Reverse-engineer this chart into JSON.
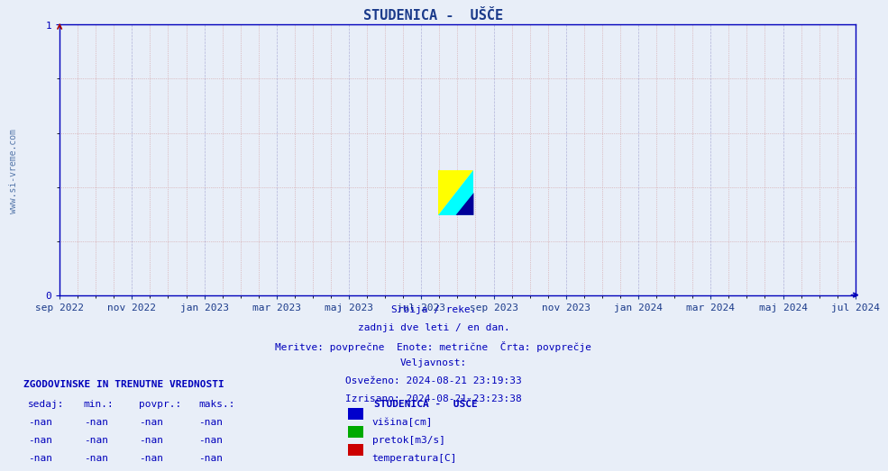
{
  "title": "STUDENICA -  UŠČE",
  "title_color": "#1a3a8a",
  "title_fontsize": 11,
  "background_color": "#e8eef8",
  "plot_bg_color": "#e8eef8",
  "axis_color": "#0000bb",
  "grid_color_major": "#9999cc",
  "grid_color_minor": "#cc8888",
  "ylim": [
    0,
    1
  ],
  "yticks": [
    0,
    1
  ],
  "xlabel_color": "#1a3a8a",
  "xticklabels": [
    "sep 2022",
    "nov 2022",
    "jan 2023",
    "mar 2023",
    "maj 2023",
    "jul 2023",
    "sep 2023",
    "nov 2023",
    "jan 2024",
    "mar 2024",
    "maj 2024",
    "jul 2024"
  ],
  "watermark": "www.si-vreme.com",
  "watermark_color": "#5577aa",
  "subtitle_lines": [
    "Srbija / reke.",
    "zadnji dve leti / en dan.",
    "Meritve: povprečne  Enote: metrične  Črta: povprečje",
    "Veljavnost:",
    "Osveženo: 2024-08-21 23:19:33",
    "Izrisano: 2024-08-21 23:23:38"
  ],
  "legend_title": "STUDENICA -  UŠČE",
  "legend_items": [
    {
      "label": "višina[cm]",
      "color": "#0000cc"
    },
    {
      "label": "pretok[m3/s]",
      "color": "#00aa00"
    },
    {
      "label": "temperatura[C]",
      "color": "#cc0000"
    }
  ],
  "table_header": "ZGODOVINSKE IN TRENUTNE VREDNOSTI",
  "table_cols": [
    "sedaj:",
    "min.:",
    "povpr.:",
    "maks.:"
  ],
  "table_rows": [
    [
      "-nan",
      "-nan",
      "-nan",
      "-nan"
    ],
    [
      "-nan",
      "-nan",
      "-nan",
      "-nan"
    ],
    [
      "-nan",
      "-nan",
      "-nan",
      "-nan"
    ]
  ],
  "logo_colors": {
    "yellow": "#ffff00",
    "cyan": "#00ffff",
    "blue": "#000099"
  }
}
